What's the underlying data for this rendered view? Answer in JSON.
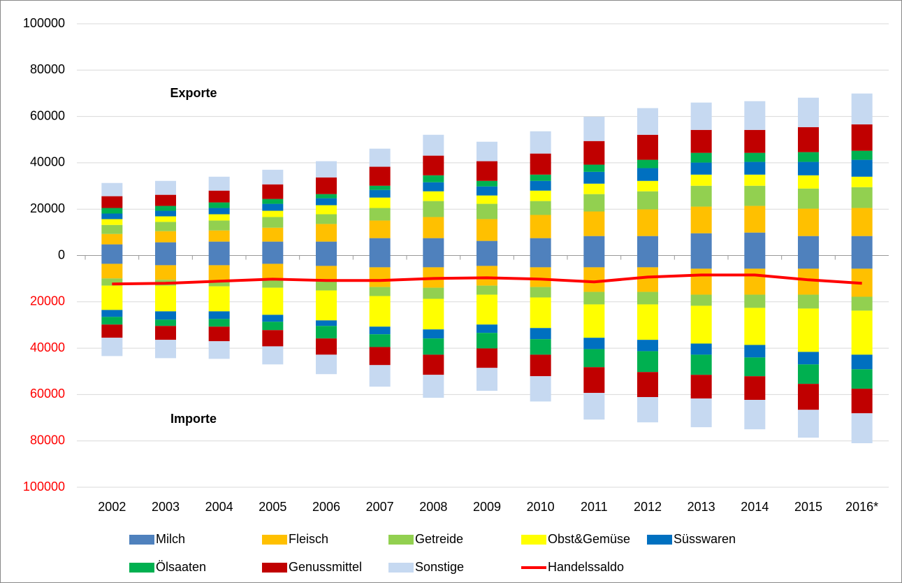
{
  "chart_data": {
    "type": "diverging_stacked_bar",
    "categories": [
      "2002",
      "2003",
      "2004",
      "2005",
      "2006",
      "2007",
      "2008",
      "2009",
      "2010",
      "2011",
      "2012",
      "2013",
      "2014",
      "2015",
      "2016*"
    ],
    "series": [
      {
        "name": "Milch",
        "color": "#4f81bd",
        "values": [
          4800,
          5700,
          6000,
          6000,
          6000,
          7500,
          7500,
          6300,
          7500,
          8400,
          8400,
          9600,
          9900,
          8400,
          8400
        ],
        "import_values": [
          -3600,
          -4200,
          -4200,
          -3600,
          -4500,
          -5100,
          -5100,
          -4500,
          -5100,
          -5100,
          -5100,
          -5700,
          -5700,
          -5700,
          -5700
        ]
      },
      {
        "name": "Fleisch",
        "color": "#ffc000",
        "values": [
          4500,
          4800,
          4800,
          6000,
          7600,
          7600,
          9100,
          9400,
          10000,
          10600,
          11500,
          11500,
          11500,
          11800,
          12100
        ],
        "import_values": [
          -6300,
          -6300,
          -6600,
          -6600,
          -6600,
          -8500,
          -8800,
          -8500,
          -8500,
          -10600,
          -10600,
          -11200,
          -11200,
          -11200,
          -12100
        ]
      },
      {
        "name": "Getreide",
        "color": "#92d050",
        "values": [
          3900,
          4000,
          4300,
          4600,
          4200,
          5400,
          6900,
          6600,
          6000,
          7500,
          7800,
          9000,
          8700,
          8700,
          9000
        ],
        "import_values": [
          -3100,
          -2500,
          -2500,
          -3700,
          -4000,
          -3900,
          -4800,
          -3900,
          -4500,
          -5400,
          -5400,
          -4800,
          -5700,
          -6000,
          -6000
        ]
      },
      {
        "name": "Obst&Gemüse",
        "color": "#ffff00",
        "values": [
          2500,
          2400,
          2700,
          2700,
          3900,
          4500,
          4200,
          3600,
          4500,
          4500,
          4500,
          4800,
          4800,
          5700,
          4500
        ],
        "import_values": [
          -10500,
          -11100,
          -10800,
          -11700,
          -12900,
          -13200,
          -13200,
          -12900,
          -13200,
          -14400,
          -15300,
          -16300,
          -16000,
          -18700,
          -19000
        ]
      },
      {
        "name": "Süsswaren",
        "color": "#0070c0",
        "values": [
          2400,
          2400,
          2700,
          3000,
          3000,
          3300,
          3900,
          3900,
          4200,
          5100,
          5500,
          5200,
          5500,
          5800,
          7300
        ],
        "import_values": [
          -3000,
          -3600,
          -3300,
          -3000,
          -2400,
          -3300,
          -3900,
          -3600,
          -4800,
          -4900,
          -4900,
          -4800,
          -5400,
          -5400,
          -6300
        ]
      },
      {
        "name": "Ölsaaten",
        "color": "#00b050",
        "values": [
          2400,
          2100,
          2400,
          2100,
          1800,
          1800,
          3000,
          2400,
          2700,
          3100,
          3600,
          4200,
          3900,
          4200,
          3900
        ],
        "import_values": [
          -3300,
          -2700,
          -3300,
          -3600,
          -5400,
          -5500,
          -7000,
          -6700,
          -6700,
          -7800,
          -9000,
          -8700,
          -8100,
          -8400,
          -8400
        ]
      },
      {
        "name": "Genussmittel",
        "color": "#c00000",
        "values": [
          5100,
          4800,
          5100,
          6300,
          7200,
          8200,
          8500,
          8500,
          9100,
          10200,
          10800,
          9900,
          9900,
          10800,
          11400
        ],
        "import_values": [
          -5700,
          -6000,
          -6300,
          -7000,
          -7000,
          -7800,
          -8700,
          -8400,
          -9300,
          -11100,
          -10800,
          -10200,
          -10200,
          -11200,
          -10600
        ]
      },
      {
        "name": "Sonstige",
        "color": "#c6d9f1",
        "values": [
          5700,
          6000,
          6000,
          6300,
          7000,
          7800,
          9000,
          8400,
          9600,
          10500,
          11500,
          11800,
          12400,
          12700,
          13300
        ],
        "import_values": [
          -7900,
          -7900,
          -7600,
          -7800,
          -8400,
          -9300,
          -9900,
          -9900,
          -10900,
          -11500,
          -10900,
          -12400,
          -12700,
          -12000,
          -12900
        ]
      }
    ],
    "line": {
      "name": "Handelssaldo",
      "color": "#ff0000",
      "values": [
        -12300,
        -12000,
        -11100,
        -10200,
        -10800,
        -10800,
        -9900,
        -9600,
        -10200,
        -11400,
        -9300,
        -8400,
        -8400,
        -10500,
        -12000
      ]
    },
    "annotations": [
      "Exporte",
      "Importe"
    ],
    "ylim": [
      -100000,
      100000
    ],
    "yticks": [
      100000,
      80000,
      60000,
      40000,
      20000,
      0,
      {
        "value": -20000,
        "label": "20000"
      },
      {
        "value": -40000,
        "label": "40000"
      },
      {
        "value": -60000,
        "label": "60000"
      },
      {
        "value": -80000,
        "label": "80000"
      },
      {
        "value": -100000,
        "label": "100000"
      }
    ],
    "negative_tick_color": "#ff0000",
    "grid": true
  }
}
